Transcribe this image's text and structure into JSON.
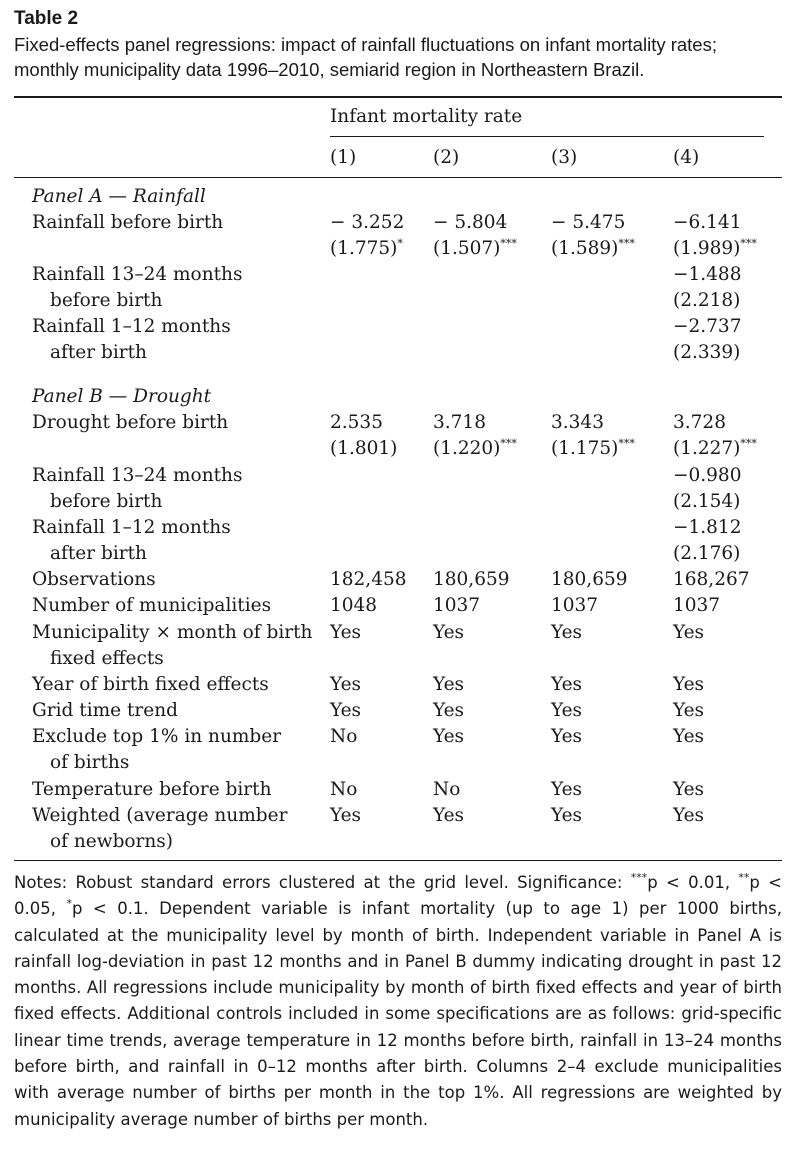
{
  "table": {
    "label": "Table 2",
    "caption": "Fixed-effects panel regressions: impact of rainfall fluctuations on infant mortality rates; monthly municipality data 1996–2010, semiarid region in Northeastern Brazil.",
    "header": {
      "group": "Infant mortality rate",
      "columns": [
        "(1)",
        "(2)",
        "(3)",
        "(4)"
      ]
    },
    "panel_a": {
      "title": "Panel A — Rainfall",
      "rainfall_before_birth": {
        "label": "Rainfall before birth",
        "coefs": [
          "− 3.252",
          "− 5.804",
          "− 5.475",
          "−6.141"
        ],
        "ses": [
          "(1.775)",
          "(1.507)",
          "(1.589)",
          "(1.989)"
        ],
        "stars": [
          "*",
          "***",
          "***",
          "***"
        ]
      },
      "rainfall_13_24": {
        "label_1": "Rainfall 13–24 months",
        "label_2": "before birth",
        "coef": "−1.488",
        "se": "(2.218)"
      },
      "rainfall_1_12_after": {
        "label_1": "Rainfall 1–12 months",
        "label_2": "after birth",
        "coef": "−2.737",
        "se": "(2.339)"
      }
    },
    "panel_b": {
      "title": "Panel B — Drought",
      "drought_before_birth": {
        "label": "Drought before birth",
        "coefs": [
          "2.535",
          "3.718",
          "3.343",
          "3.728"
        ],
        "ses": [
          "(1.801)",
          "(1.220)",
          "(1.175)",
          "(1.227)"
        ],
        "stars": [
          "",
          "***",
          "***",
          "***"
        ]
      },
      "rainfall_13_24": {
        "label_1": "Rainfall 13–24 months",
        "label_2": "before birth",
        "coef": "−0.980",
        "se": "(2.154)"
      },
      "rainfall_1_12_after": {
        "label_1": "Rainfall 1–12 months",
        "label_2": "after birth",
        "coef": "−1.812",
        "se": "(2.176)"
      }
    },
    "stats": {
      "observations": {
        "label": "Observations",
        "values": [
          "182,458",
          "180,659",
          "180,659",
          "168,267"
        ]
      },
      "municipalities": {
        "label": "Number of municipalities",
        "values": [
          "1048",
          "1037",
          "1037",
          "1037"
        ]
      },
      "muni_month_fe": {
        "label_1": "Municipality × month of birth",
        "label_2": "fixed effects",
        "values": [
          "Yes",
          "Yes",
          "Yes",
          "Yes"
        ]
      },
      "year_fe": {
        "label": "Year of birth fixed effects",
        "values": [
          "Yes",
          "Yes",
          "Yes",
          "Yes"
        ]
      },
      "grid_trend": {
        "label": "Grid time trend",
        "values": [
          "Yes",
          "Yes",
          "Yes",
          "Yes"
        ]
      },
      "exclude_top": {
        "label_1": "Exclude top 1% in number",
        "label_2": "of births",
        "values": [
          "No",
          "Yes",
          "Yes",
          "Yes"
        ]
      },
      "temperature": {
        "label": "Temperature before birth",
        "values": [
          "No",
          "No",
          "Yes",
          "Yes"
        ]
      },
      "weighted": {
        "label_1": "Weighted (average number",
        "label_2": "of newborns)",
        "values": [
          "Yes",
          "Yes",
          "Yes",
          "Yes"
        ]
      }
    },
    "notes": {
      "prefix": "Notes: Robust standard errors clustered at the grid level. Significance: ",
      "star3": "***",
      "p1": "p < 0.01, ",
      "star2": "**",
      "p2": "p < 0.05, ",
      "star1": "*",
      "rest": "p < 0.1. Dependent variable is infant mortality (up to age 1) per 1000 births, calculated at the municipality level by month of birth. Independent variable in Panel A is rainfall log-deviation in past 12 months and in Panel B dummy indicating drought in past 12 months. All regressions include municipality by month of birth fixed effects and year of birth fixed effects. Additional controls included in some specifications are as follows: grid-specific linear time trends, average temperature in 12 months before birth, rainfall in 13–24 months before birth, and rainfall in 0–12 months after birth. Columns 2–4 exclude municipalities with average number of births per month in the top 1%. All regressions are weighted by municipality average number of births per month."
    }
  }
}
